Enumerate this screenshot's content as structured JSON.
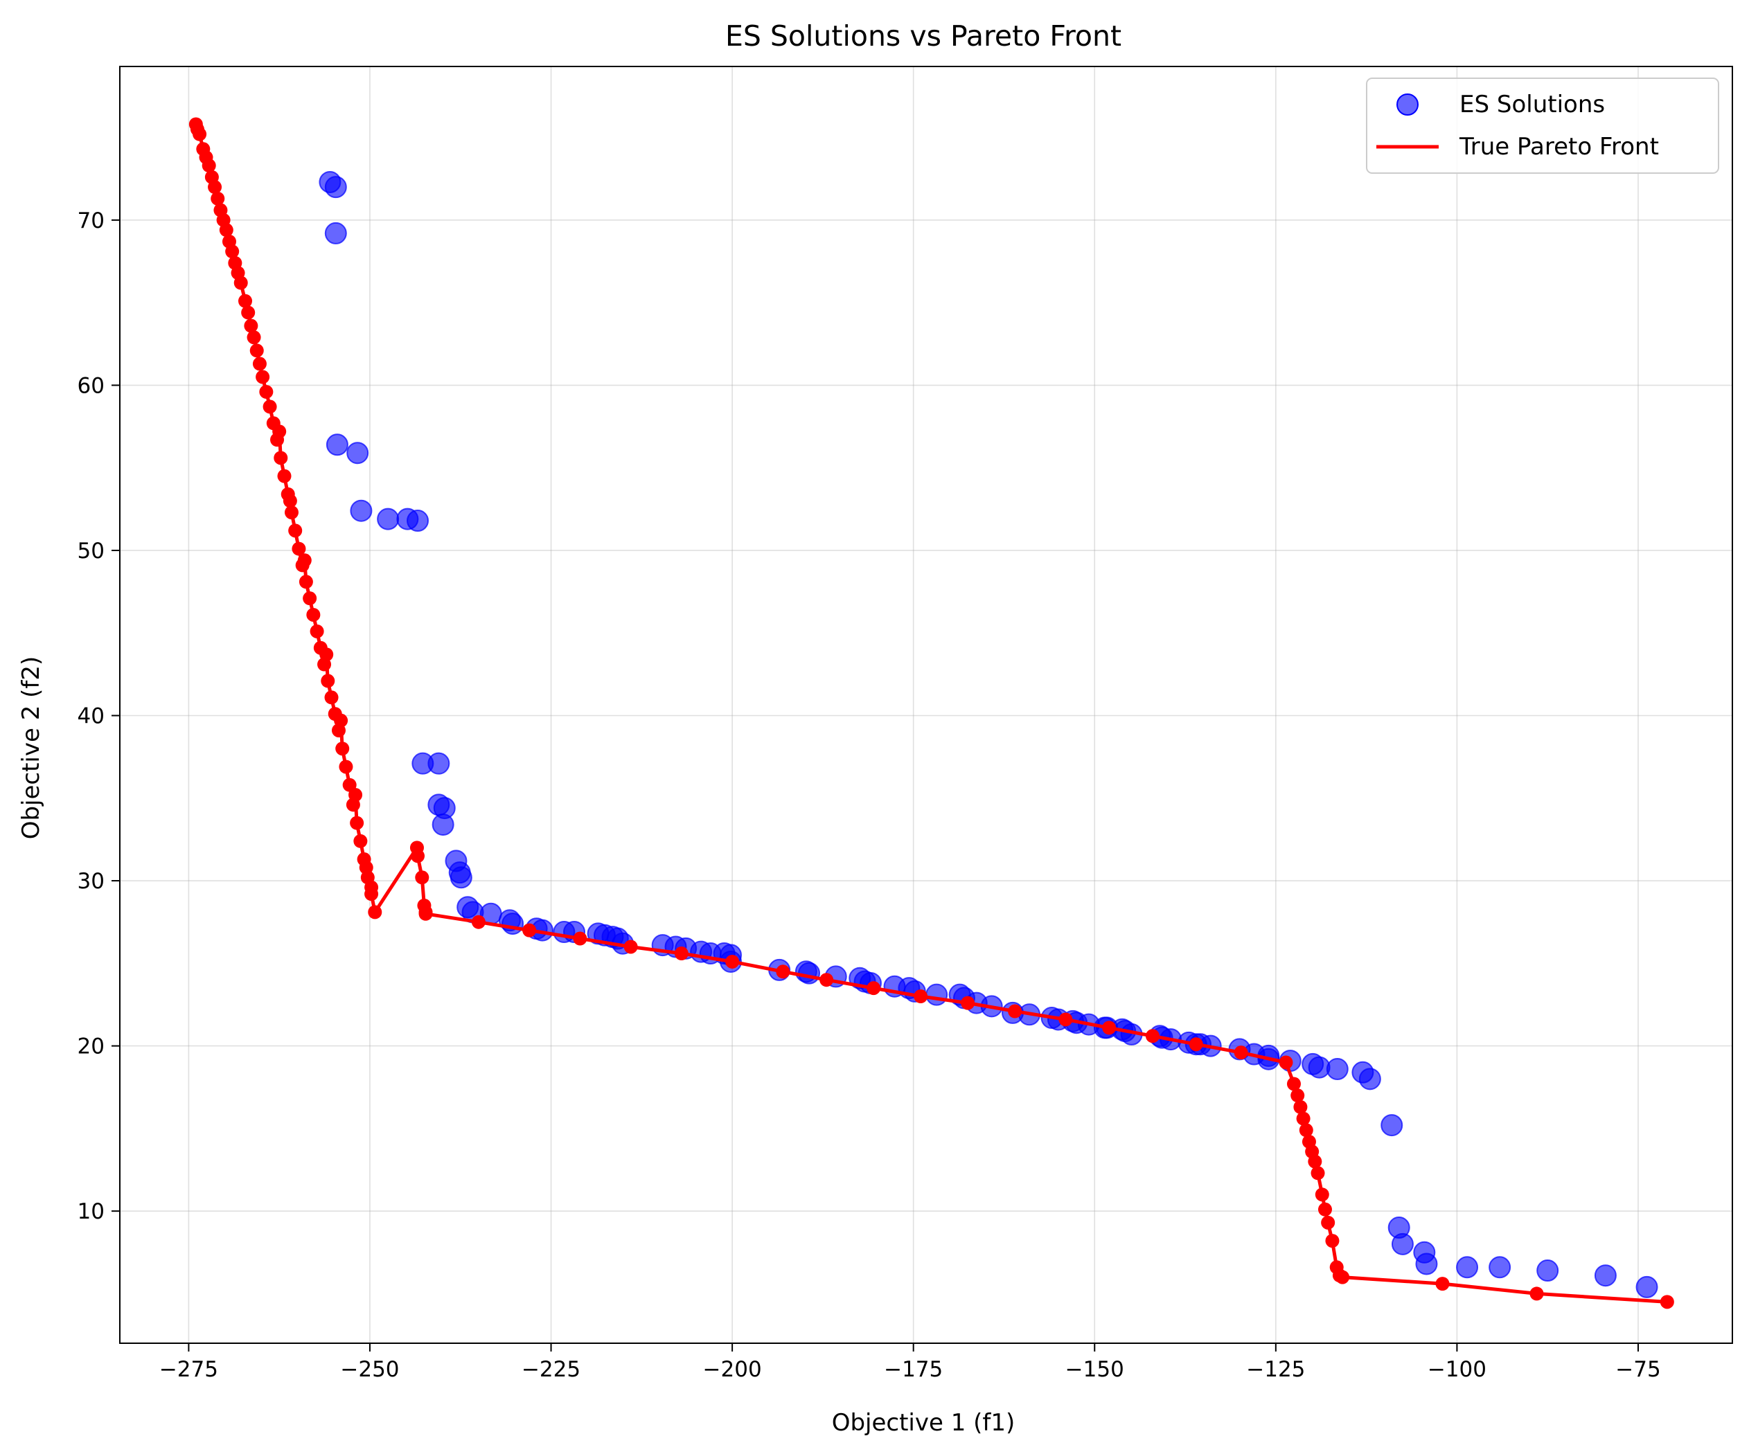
{
  "chart_data": {
    "type": "scatter",
    "title": "ES Solutions vs Pareto Front",
    "xlabel": "Objective 1 (f1)",
    "ylabel": "Objective 2 (f2)",
    "xlim": [
      -284.5,
      -62
    ],
    "ylim": [
      2.0,
      79.3
    ],
    "xticks": [
      -275,
      -250,
      -225,
      -200,
      -175,
      -150,
      -125,
      -100,
      -75
    ],
    "xtick_labels": [
      "−275",
      "−250",
      "−225",
      "−200",
      "−175",
      "−150",
      "−125",
      "−100",
      "−75"
    ],
    "yticks": [
      10,
      20,
      30,
      40,
      50,
      60,
      70
    ],
    "ytick_labels": [
      "10",
      "20",
      "30",
      "40",
      "50",
      "60",
      "70"
    ],
    "grid": true,
    "legend_position": "top-right",
    "series": [
      {
        "name": "ES Solutions",
        "kind": "scatter",
        "color": "#0000ff",
        "opacity": 0.6,
        "points": [
          [
            -255.5,
            72.3
          ],
          [
            -254.7,
            72.0
          ],
          [
            -254.7,
            69.2
          ],
          [
            -254.5,
            56.4
          ],
          [
            -251.7,
            55.9
          ],
          [
            -251.2,
            52.4
          ],
          [
            -247.5,
            51.9
          ],
          [
            -244.8,
            51.9
          ],
          [
            -243.4,
            51.8
          ],
          [
            -242.7,
            37.1
          ],
          [
            -240.5,
            37.1
          ],
          [
            -240.5,
            34.6
          ],
          [
            -239.7,
            34.4
          ],
          [
            -239.9,
            33.4
          ],
          [
            -238.1,
            31.2
          ],
          [
            -237.6,
            30.5
          ],
          [
            -237.4,
            30.2
          ],
          [
            -236.5,
            28.4
          ],
          [
            -235.8,
            28.1
          ],
          [
            -233.3,
            28.0
          ],
          [
            -230.7,
            27.6
          ],
          [
            -230.3,
            27.4
          ],
          [
            -227.0,
            27.1
          ],
          [
            -226.2,
            27.0
          ],
          [
            -223.2,
            26.9
          ],
          [
            -221.8,
            26.9
          ],
          [
            -218.5,
            26.8
          ],
          [
            -217.6,
            26.7
          ],
          [
            -216.5,
            26.6
          ],
          [
            -215.8,
            26.5
          ],
          [
            -215.1,
            26.2
          ],
          [
            -209.6,
            26.1
          ],
          [
            -207.8,
            26.0
          ],
          [
            -206.4,
            25.9
          ],
          [
            -204.3,
            25.7
          ],
          [
            -203.0,
            25.6
          ],
          [
            -201.1,
            25.6
          ],
          [
            -200.2,
            25.5
          ],
          [
            -200.2,
            25.1
          ],
          [
            -193.5,
            24.6
          ],
          [
            -189.8,
            24.5
          ],
          [
            -189.4,
            24.4
          ],
          [
            -185.7,
            24.2
          ],
          [
            -182.4,
            24.1
          ],
          [
            -181.7,
            23.9
          ],
          [
            -180.9,
            23.8
          ],
          [
            -177.6,
            23.6
          ],
          [
            -175.6,
            23.5
          ],
          [
            -174.8,
            23.3
          ],
          [
            -171.8,
            23.1
          ],
          [
            -168.6,
            23.1
          ],
          [
            -168.0,
            22.9
          ],
          [
            -166.3,
            22.6
          ],
          [
            -164.2,
            22.4
          ],
          [
            -161.3,
            22.0
          ],
          [
            -159.0,
            21.9
          ],
          [
            -155.9,
            21.7
          ],
          [
            -155.0,
            21.6
          ],
          [
            -153.0,
            21.5
          ],
          [
            -152.5,
            21.4
          ],
          [
            -150.8,
            21.3
          ],
          [
            -148.6,
            21.1
          ],
          [
            -148.3,
            21.1
          ],
          [
            -146.2,
            21.0
          ],
          [
            -145.8,
            20.9
          ],
          [
            -144.9,
            20.7
          ],
          [
            -141.0,
            20.6
          ],
          [
            -140.7,
            20.5
          ],
          [
            -139.5,
            20.4
          ],
          [
            -137.0,
            20.2
          ],
          [
            -136.0,
            20.1
          ],
          [
            -135.4,
            20.1
          ],
          [
            -134.0,
            20.0
          ],
          [
            -130.0,
            19.8
          ],
          [
            -128.0,
            19.5
          ],
          [
            -126.0,
            19.4
          ],
          [
            -126.0,
            19.2
          ],
          [
            -123.0,
            19.1
          ],
          [
            -119.9,
            18.9
          ],
          [
            -119.0,
            18.7
          ],
          [
            -116.5,
            18.6
          ],
          [
            -113.0,
            18.4
          ],
          [
            -112.0,
            18.0
          ],
          [
            -109.0,
            15.2
          ],
          [
            -108.0,
            9.0
          ],
          [
            -107.5,
            8.0
          ],
          [
            -104.5,
            7.5
          ],
          [
            -104.2,
            6.8
          ],
          [
            -98.6,
            6.6
          ],
          [
            -94.1,
            6.6
          ],
          [
            -87.5,
            6.4
          ],
          [
            -79.5,
            6.1
          ],
          [
            -73.8,
            5.4
          ]
        ]
      },
      {
        "name": "True Pareto Front",
        "kind": "line",
        "color": "#ff0000",
        "points": [
          [
            -274.0,
            75.8
          ],
          [
            -273.5,
            75.2
          ],
          [
            -273.0,
            74.3
          ],
          [
            -272.6,
            73.8
          ],
          [
            -272.2,
            73.3
          ],
          [
            -271.8,
            72.6
          ],
          [
            -271.4,
            72.0
          ],
          [
            -271.0,
            71.3
          ],
          [
            -270.6,
            70.6
          ],
          [
            -270.2,
            70.0
          ],
          [
            -269.8,
            69.4
          ],
          [
            -269.4,
            68.7
          ],
          [
            -269.0,
            68.1
          ],
          [
            -268.6,
            67.4
          ],
          [
            -268.2,
            66.8
          ],
          [
            -267.8,
            66.2
          ],
          [
            -267.2,
            65.1
          ],
          [
            -266.8,
            64.4
          ],
          [
            -266.4,
            63.6
          ],
          [
            -266.0,
            62.9
          ],
          [
            -265.6,
            62.1
          ],
          [
            -265.2,
            61.3
          ],
          [
            -264.8,
            60.5
          ],
          [
            -264.3,
            59.6
          ],
          [
            -263.8,
            58.7
          ],
          [
            -263.3,
            57.7
          ],
          [
            -262.8,
            56.7
          ],
          [
            -262.3,
            55.6
          ],
          [
            -261.8,
            54.5
          ],
          [
            -261.3,
            53.4
          ],
          [
            -260.8,
            52.3
          ],
          [
            -260.3,
            51.2
          ],
          [
            -259.8,
            50.1
          ],
          [
            -259.3,
            49.1
          ],
          [
            -258.8,
            48.1
          ],
          [
            -258.3,
            47.1
          ],
          [
            -257.8,
            46.1
          ],
          [
            -257.3,
            45.1
          ],
          [
            -256.8,
            44.1
          ],
          [
            -256.3,
            43.1
          ],
          [
            -255.8,
            42.1
          ],
          [
            -255.3,
            41.1
          ],
          [
            -254.8,
            40.1
          ],
          [
            -254.3,
            39.1
          ],
          [
            -253.8,
            38.0
          ],
          [
            -253.3,
            36.9
          ],
          [
            -252.8,
            35.8
          ],
          [
            -252.3,
            34.6
          ],
          [
            -251.8,
            33.5
          ],
          [
            -251.3,
            32.4
          ],
          [
            -250.8,
            31.3
          ],
          [
            -250.3,
            30.2
          ],
          [
            -249.8,
            29.2
          ],
          [
            -249.3,
            28.1
          ],
          [
            -273.8,
            75.5
          ],
          [
            -262.5,
            57.2
          ],
          [
            -261.0,
            53.0
          ],
          [
            -259.0,
            49.4
          ],
          [
            -256.0,
            43.7
          ],
          [
            -254.0,
            39.7
          ],
          [
            -252.0,
            35.2
          ],
          [
            -250.5,
            30.8
          ],
          [
            -249.8,
            29.6
          ],
          [
            -243.5,
            32.0
          ],
          [
            -243.4,
            31.5
          ],
          [
            -242.8,
            30.2
          ],
          [
            -242.5,
            28.5
          ],
          [
            -242.3,
            28.1
          ],
          [
            -242.3,
            28.0
          ],
          [
            -235.0,
            27.5
          ],
          [
            -228.0,
            27.0
          ],
          [
            -221.0,
            26.5
          ],
          [
            -214.0,
            26.0
          ],
          [
            -207.0,
            25.6
          ],
          [
            -200.0,
            25.1
          ],
          [
            -193.0,
            24.5
          ],
          [
            -187.0,
            24.0
          ],
          [
            -180.5,
            23.5
          ],
          [
            -174.0,
            23.0
          ],
          [
            -167.5,
            22.6
          ],
          [
            -161.0,
            22.1
          ],
          [
            -154.0,
            21.6
          ],
          [
            -148.0,
            21.1
          ],
          [
            -142.0,
            20.6
          ],
          [
            -136.0,
            20.1
          ],
          [
            -129.8,
            19.6
          ],
          [
            -123.6,
            19.0
          ],
          [
            -122.5,
            17.7
          ],
          [
            -122.0,
            17.0
          ],
          [
            -121.6,
            16.3
          ],
          [
            -121.2,
            15.6
          ],
          [
            -120.8,
            14.9
          ],
          [
            -120.4,
            14.2
          ],
          [
            -120.0,
            13.6
          ],
          [
            -119.6,
            13.0
          ],
          [
            -119.2,
            12.3
          ],
          [
            -118.6,
            11.0
          ],
          [
            -118.2,
            10.1
          ],
          [
            -117.8,
            9.3
          ],
          [
            -117.2,
            8.2
          ],
          [
            -116.6,
            6.6
          ],
          [
            -116.2,
            6.1
          ],
          [
            -115.8,
            6.0
          ],
          [
            -102.0,
            5.6
          ],
          [
            -89.0,
            5.0
          ],
          [
            -71.0,
            4.5
          ]
        ]
      }
    ]
  }
}
